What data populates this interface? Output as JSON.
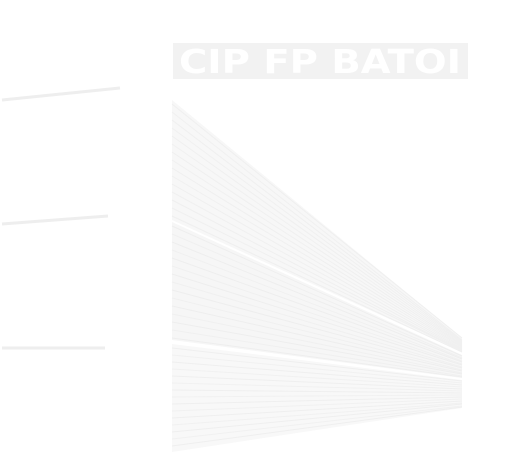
{
  "logo": {
    "wordmark": "CIP FP BATOI",
    "palette": {
      "background": "#ffffff",
      "wordmark_fill": "#f1f1f1",
      "stripe_light": "#f6f6f6",
      "stripe_mid": "#efefef",
      "side_line": "#efefef"
    }
  }
}
